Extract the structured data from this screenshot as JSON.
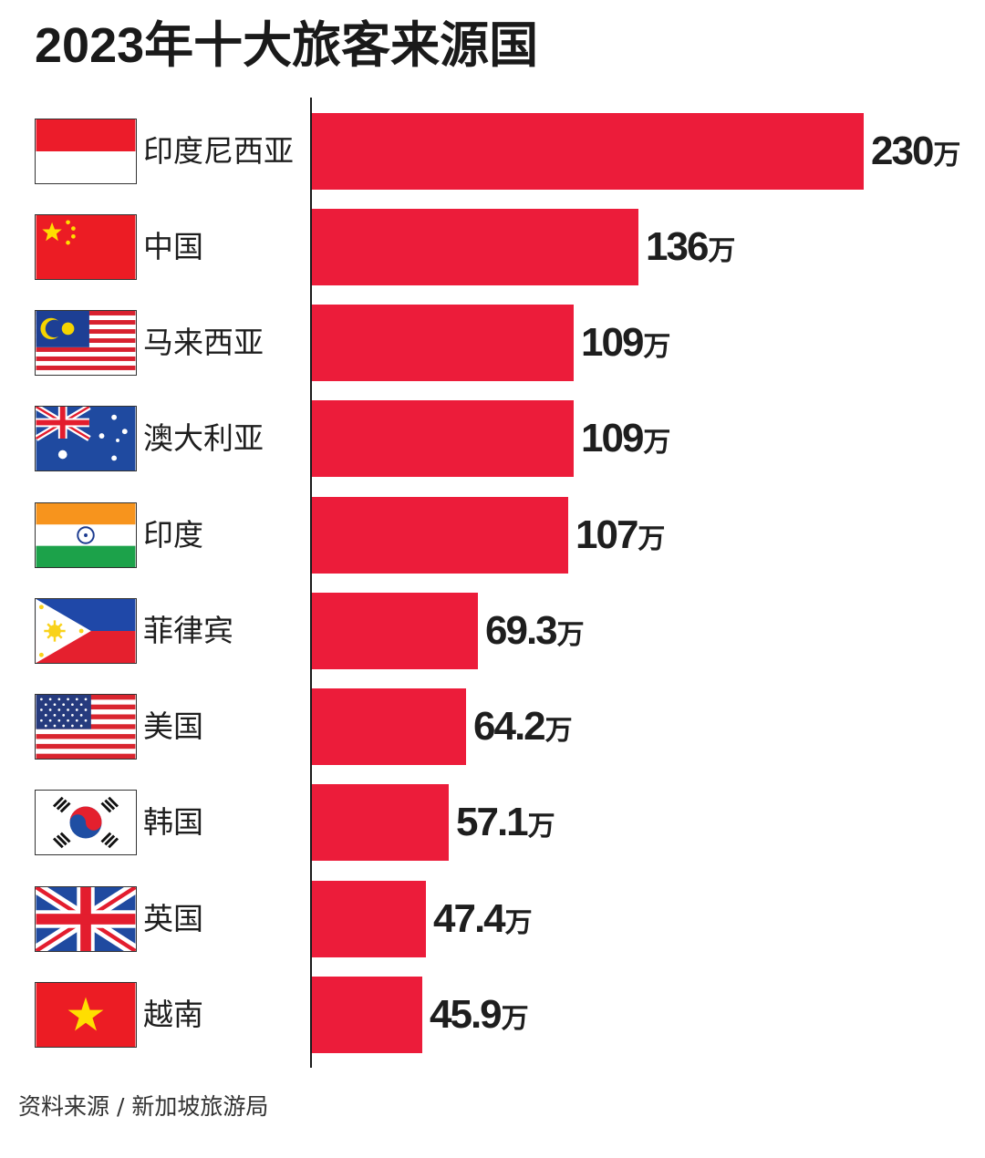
{
  "title": "2023年十大旅客来源国",
  "unit": "万",
  "source": "资料来源 / 新加坡旅游局",
  "colors": {
    "bar": "#ec1c3a",
    "text": "#1e1e1e",
    "axis": "#1a1a1a"
  },
  "rows": [
    {
      "country": "印度尼西亚",
      "flag": "indonesia-flag-icon",
      "value": "230",
      "num": 230
    },
    {
      "country": "中国",
      "flag": "china-flag-icon",
      "value": "136",
      "num": 136
    },
    {
      "country": "马来西亚",
      "flag": "malaysia-flag-icon",
      "value": "109",
      "num": 109
    },
    {
      "country": "澳大利亚",
      "flag": "australia-flag-icon",
      "value": "109",
      "num": 109
    },
    {
      "country": "印度",
      "flag": "india-flag-icon",
      "value": "107",
      "num": 107
    },
    {
      "country": "菲律宾",
      "flag": "philippines-flag-icon",
      "value": "69.3",
      "num": 69.3
    },
    {
      "country": "美国",
      "flag": "usa-flag-icon",
      "value": "64.2",
      "num": 64.2
    },
    {
      "country": "韩国",
      "flag": "south-korea-flag-icon",
      "value": "57.1",
      "num": 57.1
    },
    {
      "country": "英国",
      "flag": "uk-flag-icon",
      "value": "47.4",
      "num": 47.4
    },
    {
      "country": "越南",
      "flag": "vietnam-flag-icon",
      "value": "45.9",
      "num": 45.9
    }
  ],
  "chart_data": {
    "type": "bar",
    "orientation": "horizontal",
    "title": "2023年十大旅客来源国",
    "categories": [
      "印度尼西亚",
      "中国",
      "马来西亚",
      "澳大利亚",
      "印度",
      "菲律宾",
      "美国",
      "韩国",
      "英国",
      "越南"
    ],
    "values": [
      230,
      136,
      109,
      109,
      107,
      69.3,
      64.2,
      57.1,
      47.4,
      45.9
    ],
    "value_labels": [
      "230万",
      "136万",
      "109万",
      "109万",
      "107万",
      "69.3万",
      "64.2万",
      "57.1万",
      "47.4万",
      "45.9万"
    ],
    "unit": "万 (10,000 visitors)",
    "xlabel": "",
    "ylabel": "",
    "grid": false,
    "legend": null,
    "annotations": [
      "资料来源 / 新加坡旅游局"
    ]
  }
}
